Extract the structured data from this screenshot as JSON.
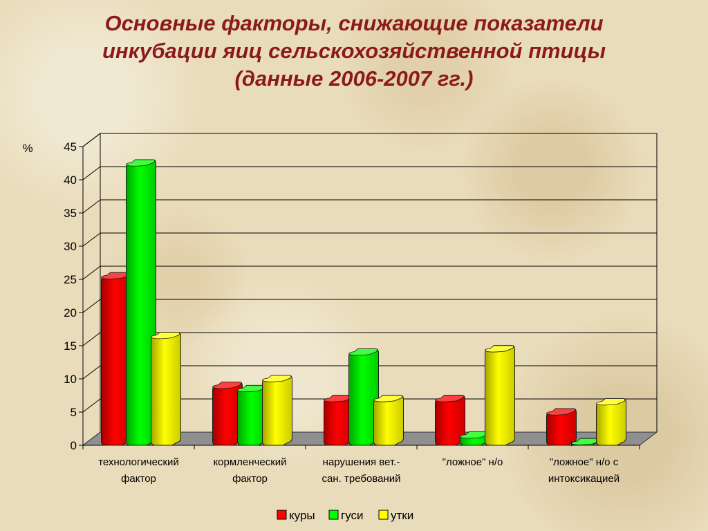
{
  "title_lines": [
    "Основные факторы, снижающие показатели",
    "инкубации яиц сельскохозяйственной птицы",
    "(данные 2006-2007 гг.)"
  ],
  "chart_data": {
    "type": "bar",
    "title": "Основные факторы, снижающие показатели инкубации яиц сельскохозяйственной птицы (данные 2006-2007 гг.)",
    "ylabel": "%",
    "xlabel": "",
    "ylim": [
      0,
      45
    ],
    "yticks": [
      0,
      5,
      10,
      15,
      20,
      25,
      30,
      35,
      40,
      45
    ],
    "grid": true,
    "legend_position": "bottom",
    "categories": [
      [
        "технологический",
        "фактор"
      ],
      [
        "кормленческий",
        "фактор"
      ],
      [
        "нарушения вет.-",
        "сан. требований"
      ],
      [
        "\"ложное\" н/о"
      ],
      [
        "\"ложное\" н/о с",
        "интоксикацией"
      ]
    ],
    "series": [
      {
        "name": "куры",
        "color": "#ff0000",
        "values": [
          25.5,
          9,
          7,
          7,
          5
        ]
      },
      {
        "name": "гуси",
        "color": "#00ff00",
        "values": [
          42.5,
          8.5,
          14,
          1.5,
          0.5
        ]
      },
      {
        "name": "утки",
        "color": "#ffff00",
        "values": [
          16.5,
          10,
          7,
          14.5,
          6.5
        ]
      }
    ]
  }
}
